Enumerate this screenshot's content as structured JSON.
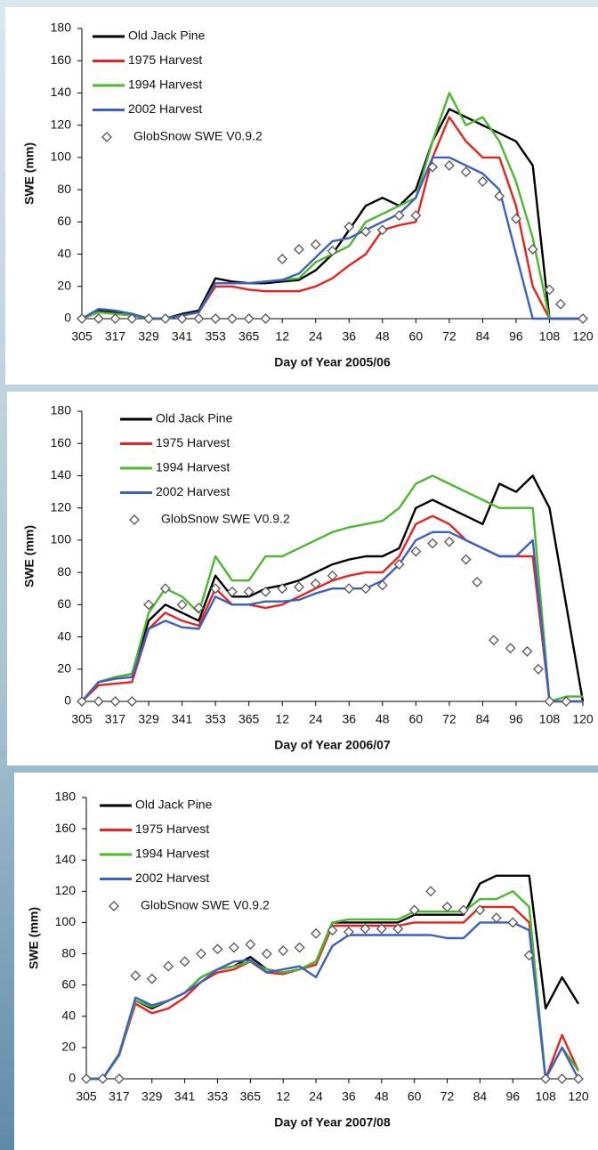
{
  "chart_data": [
    {
      "type": "line",
      "xlabel": "Day of Year 2005/06",
      "ylabel": "SWE (mm)",
      "xlim": [
        305,
        485
      ],
      "ylim": [
        0,
        180
      ],
      "yticks": [
        0,
        20,
        40,
        60,
        80,
        100,
        120,
        140,
        160,
        180
      ],
      "xticks": [
        305,
        317,
        329,
        341,
        353,
        365,
        {
          "value": 377,
          "label": "12"
        },
        {
          "value": 389,
          "label": "24"
        },
        {
          "value": 401,
          "label": "36"
        },
        {
          "value": 413,
          "label": "48"
        },
        {
          "value": 425,
          "label": "60"
        },
        {
          "value": 437,
          "label": "72"
        },
        {
          "value": 449,
          "label": "84"
        },
        {
          "value": 461,
          "label": "96"
        },
        {
          "value": 473,
          "label": "108"
        },
        {
          "value": 485,
          "label": "120"
        }
      ],
      "legend": "upper left",
      "x": [
        305,
        311,
        317,
        323,
        329,
        335,
        341,
        347,
        353,
        359,
        365,
        371,
        377,
        383,
        389,
        395,
        401,
        407,
        413,
        419,
        425,
        431,
        437,
        443,
        449,
        455,
        461,
        467,
        473,
        479,
        485
      ],
      "series": [
        {
          "name": "Old Jack Pine",
          "color": "#000000",
          "values": [
            0,
            5,
            4,
            3,
            0,
            0,
            3,
            5,
            25,
            23,
            22,
            22,
            23,
            24,
            30,
            40,
            55,
            70,
            75,
            70,
            80,
            110,
            130,
            125,
            120,
            115,
            110,
            95,
            0,
            0,
            0
          ]
        },
        {
          "name": "1975 Harvest",
          "color": "#e8231f",
          "values": [
            0,
            4,
            3,
            2,
            0,
            0,
            2,
            4,
            20,
            20,
            18,
            17,
            17,
            17,
            20,
            25,
            33,
            40,
            55,
            58,
            60,
            100,
            125,
            110,
            100,
            100,
            70,
            20,
            0,
            0,
            0
          ]
        },
        {
          "name": "1994 Harvest",
          "color": "#4cb82e",
          "values": [
            0,
            4,
            3,
            2,
            0,
            0,
            2,
            4,
            22,
            22,
            22,
            23,
            24,
            25,
            35,
            40,
            45,
            60,
            65,
            70,
            75,
            110,
            140,
            120,
            125,
            110,
            85,
            50,
            0,
            0,
            0
          ]
        },
        {
          "name": "2002 Harvest",
          "color": "#3c5fc4",
          "values": [
            0,
            6,
            5,
            3,
            0,
            0,
            2,
            4,
            22,
            22,
            22,
            23,
            24,
            28,
            38,
            48,
            50,
            55,
            60,
            65,
            75,
            100,
            100,
            95,
            90,
            80,
            40,
            0,
            0,
            0,
            0
          ]
        },
        {
          "name": "GlobSnow SWE V0.9.2",
          "color": "#555555",
          "marker": "diamond",
          "x": [
            305,
            311,
            317,
            323,
            329,
            335,
            341,
            347,
            353,
            359,
            365,
            371,
            377,
            383,
            389,
            395,
            401,
            407,
            413,
            419,
            425,
            431,
            437,
            443,
            449,
            455,
            461,
            467,
            473,
            477,
            485
          ],
          "values": [
            0,
            0,
            0,
            0,
            0,
            0,
            0,
            0,
            0,
            0,
            0,
            0,
            37,
            43,
            46,
            42,
            57,
            54,
            55,
            64,
            64,
            94,
            95,
            91,
            85,
            76,
            62,
            43,
            18,
            9,
            0
          ]
        }
      ]
    },
    {
      "type": "line",
      "xlabel": "Day of Year 2006/07",
      "ylabel": "SWE (mm)",
      "xlim": [
        305,
        485
      ],
      "ylim": [
        0,
        180
      ],
      "yticks": [
        0,
        20,
        40,
        60,
        80,
        100,
        120,
        140,
        160,
        180
      ],
      "xticks": [
        305,
        317,
        329,
        341,
        353,
        365,
        {
          "value": 377,
          "label": "12"
        },
        {
          "value": 389,
          "label": "24"
        },
        {
          "value": 401,
          "label": "36"
        },
        {
          "value": 413,
          "label": "48"
        },
        {
          "value": 425,
          "label": "60"
        },
        {
          "value": 437,
          "label": "72"
        },
        {
          "value": 449,
          "label": "84"
        },
        {
          "value": 461,
          "label": "96"
        },
        {
          "value": 473,
          "label": "108"
        },
        {
          "value": 485,
          "label": "120"
        }
      ],
      "legend": "upper left",
      "x": [
        305,
        311,
        317,
        323,
        329,
        335,
        341,
        347,
        353,
        359,
        365,
        371,
        377,
        383,
        389,
        395,
        401,
        407,
        413,
        419,
        425,
        431,
        437,
        443,
        449,
        455,
        461,
        467,
        473,
        479,
        485
      ],
      "series": [
        {
          "name": "Old Jack Pine",
          "color": "#000000",
          "values": [
            0,
            12,
            15,
            17,
            50,
            60,
            55,
            50,
            78,
            65,
            65,
            70,
            72,
            75,
            80,
            85,
            88,
            90,
            90,
            95,
            120,
            125,
            120,
            115,
            110,
            135,
            130,
            140,
            120,
            60,
            0
          ]
        },
        {
          "name": "1975 Harvest",
          "color": "#e8231f",
          "values": [
            0,
            10,
            11,
            12,
            45,
            55,
            50,
            47,
            70,
            60,
            60,
            58,
            60,
            65,
            70,
            75,
            78,
            80,
            80,
            90,
            110,
            115,
            110,
            100,
            95,
            90,
            90,
            90,
            0,
            0,
            0
          ]
        },
        {
          "name": "1994 Harvest",
          "color": "#4cb82e",
          "values": [
            0,
            12,
            15,
            17,
            55,
            70,
            65,
            55,
            90,
            75,
            75,
            90,
            90,
            95,
            100,
            105,
            108,
            110,
            112,
            120,
            135,
            140,
            135,
            130,
            125,
            120,
            120,
            120,
            0,
            3,
            3
          ]
        },
        {
          "name": "2002 Harvest",
          "color": "#3c5fc4",
          "values": [
            0,
            12,
            14,
            15,
            45,
            50,
            46,
            45,
            65,
            60,
            60,
            62,
            62,
            63,
            67,
            70,
            70,
            70,
            75,
            85,
            100,
            105,
            105,
            100,
            95,
            90,
            90,
            100,
            0,
            0,
            0
          ]
        },
        {
          "name": "GlobSnow SWE V0.9.2",
          "color": "#555555",
          "marker": "diamond",
          "x": [
            305,
            311,
            317,
            323,
            329,
            335,
            341,
            347,
            353,
            359,
            365,
            371,
            377,
            383,
            389,
            395,
            401,
            407,
            413,
            419,
            425,
            431,
            437,
            443,
            447,
            453,
            459,
            465,
            469,
            473,
            479
          ],
          "values": [
            0,
            0,
            0,
            0,
            60,
            70,
            60,
            58,
            70,
            68,
            68,
            68,
            70,
            71,
            73,
            78,
            70,
            70,
            72,
            85,
            93,
            98,
            99,
            88,
            74,
            38,
            33,
            31,
            20,
            0,
            0
          ]
        }
      ]
    },
    {
      "type": "line",
      "xlabel": "Day of Year 2007/08",
      "ylabel": "SWE (mm)",
      "xlim": [
        305,
        485
      ],
      "ylim": [
        0,
        180
      ],
      "yticks": [
        0,
        20,
        40,
        60,
        80,
        100,
        120,
        140,
        160,
        180
      ],
      "xticks": [
        305,
        317,
        329,
        341,
        353,
        365,
        {
          "value": 377,
          "label": "12"
        },
        {
          "value": 389,
          "label": "24"
        },
        {
          "value": 401,
          "label": "36"
        },
        {
          "value": 413,
          "label": "48"
        },
        {
          "value": 425,
          "label": "60"
        },
        {
          "value": 437,
          "label": "72"
        },
        {
          "value": 449,
          "label": "84"
        },
        {
          "value": 461,
          "label": "96"
        },
        {
          "value": 473,
          "label": "108"
        },
        {
          "value": 485,
          "label": "120"
        }
      ],
      "legend": "upper left",
      "x": [
        305,
        311,
        317,
        323,
        329,
        335,
        341,
        347,
        353,
        359,
        365,
        371,
        377,
        383,
        389,
        395,
        401,
        407,
        413,
        419,
        425,
        431,
        437,
        443,
        449,
        455,
        461,
        467,
        473,
        479,
        485
      ],
      "series": [
        {
          "name": "Old Jack Pine",
          "color": "#000000",
          "values": [
            0,
            0,
            15,
            50,
            45,
            50,
            55,
            65,
            70,
            72,
            78,
            70,
            68,
            70,
            75,
            100,
            100,
            100,
            100,
            100,
            105,
            105,
            105,
            105,
            125,
            130,
            130,
            130,
            45,
            65,
            48
          ]
        },
        {
          "name": "1975 Harvest",
          "color": "#e8231f",
          "values": [
            0,
            0,
            15,
            48,
            42,
            45,
            52,
            62,
            68,
            70,
            75,
            68,
            67,
            70,
            73,
            98,
            98,
            98,
            98,
            98,
            100,
            100,
            100,
            100,
            110,
            110,
            110,
            100,
            0,
            28,
            5
          ]
        },
        {
          "name": "1994 Harvest",
          "color": "#4cb82e",
          "values": [
            0,
            0,
            15,
            50,
            46,
            50,
            55,
            65,
            70,
            72,
            75,
            70,
            68,
            70,
            75,
            100,
            102,
            102,
            102,
            102,
            107,
            107,
            107,
            107,
            115,
            115,
            120,
            110,
            0,
            20,
            5
          ]
        },
        {
          "name": "2002 Harvest",
          "color": "#3c5fc4",
          "values": [
            0,
            0,
            16,
            52,
            47,
            50,
            55,
            62,
            70,
            75,
            76,
            68,
            70,
            72,
            65,
            85,
            92,
            92,
            92,
            92,
            92,
            92,
            90,
            90,
            100,
            100,
            100,
            95,
            0,
            20,
            0
          ]
        },
        {
          "name": "GlobSnow SWE V0.9.2",
          "color": "#555555",
          "marker": "diamond",
          "x": [
            305,
            311,
            317,
            323,
            329,
            335,
            341,
            347,
            353,
            359,
            365,
            371,
            377,
            383,
            389,
            395,
            401,
            407,
            413,
            419,
            425,
            431,
            437,
            443,
            449,
            455,
            461,
            467,
            473,
            479,
            485
          ],
          "values": [
            0,
            0,
            0,
            66,
            64,
            72,
            75,
            80,
            83,
            84,
            86,
            80,
            82,
            84,
            93,
            95,
            94,
            96,
            96,
            96,
            108,
            120,
            110,
            108,
            108,
            103,
            100,
            79,
            0,
            0,
            0
          ]
        }
      ]
    }
  ]
}
